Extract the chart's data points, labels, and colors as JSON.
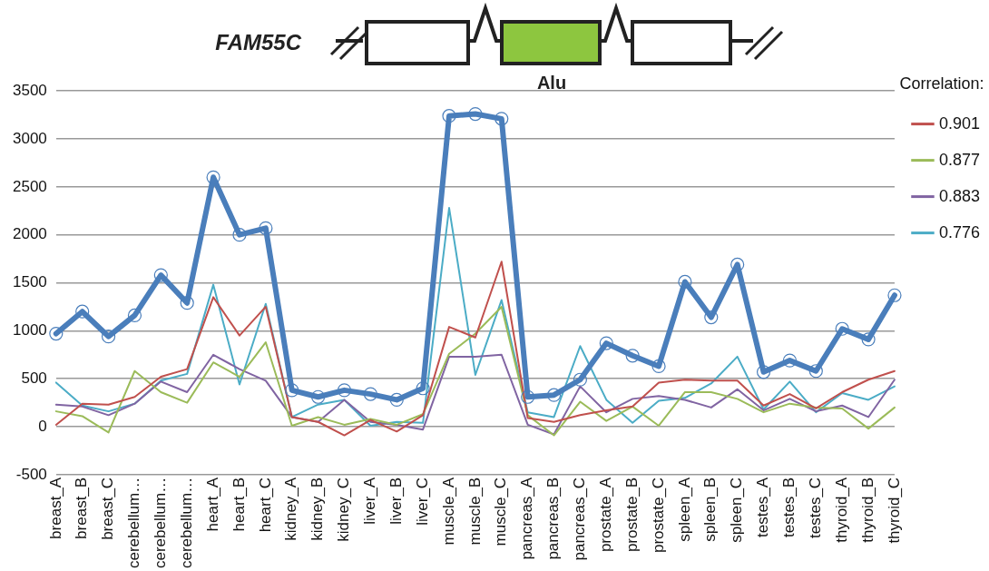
{
  "chart_data": {
    "type": "line",
    "title": "FAM55C",
    "annotations": [
      "Alu"
    ],
    "legend_title": "Correlation:",
    "legend": "top right",
    "grid": "y",
    "ylim": [
      -500,
      3500
    ],
    "yticks": [
      -500,
      0,
      500,
      1000,
      1500,
      2000,
      2500,
      3000,
      3500
    ],
    "categories": [
      "breast_A",
      "breast_B",
      "breast_C",
      "cerebellum…",
      "cerebellum…",
      "cerebellum…",
      "heart_A",
      "heart_B",
      "heart_C",
      "kidney_A",
      "kidney_B",
      "kidney_C",
      "liver_A",
      "liver_B",
      "liver_C",
      "muscle_A",
      "muscle_B",
      "muscle_C",
      "pancreas_A",
      "pancreas_B",
      "pancreas_C",
      "prostate_A",
      "prostate_B",
      "prostate_C",
      "spleen_A",
      "spleen_B",
      "spleen_C",
      "testes_A",
      "testes_B",
      "testes_C",
      "thyroid_A",
      "thyroid_B",
      "thyroid_C"
    ],
    "series": [
      {
        "color": "#4a7ebb",
        "marker": "circle",
        "values": [
          970,
          1200,
          940,
          1160,
          1580,
          1290,
          2600,
          2000,
          2070,
          380,
          310,
          380,
          340,
          280,
          400,
          3240,
          3260,
          3210,
          310,
          330,
          490,
          870,
          740,
          630,
          1510,
          1140,
          1690,
          570,
          690,
          580,
          1020,
          910,
          1370
        ]
      },
      {
        "name": "0.901",
        "color": "#c0504d",
        "marker": "none",
        "values": [
          20,
          240,
          230,
          310,
          520,
          600,
          1350,
          950,
          1250,
          100,
          50,
          -90,
          70,
          -50,
          120,
          1040,
          930,
          1720,
          90,
          50,
          120,
          170,
          210,
          460,
          490,
          480,
          480,
          220,
          340,
          190,
          360,
          490,
          580
        ]
      },
      {
        "name": "0.877",
        "color": "#9bbb59",
        "marker": "none",
        "values": [
          160,
          110,
          -60,
          580,
          360,
          250,
          670,
          520,
          880,
          10,
          100,
          20,
          80,
          20,
          130,
          760,
          970,
          1250,
          120,
          -90,
          260,
          60,
          210,
          10,
          360,
          360,
          290,
          150,
          240,
          200,
          190,
          -20,
          200
        ]
      },
      {
        "name": "0.883",
        "color": "#8064a2",
        "marker": "none",
        "values": [
          230,
          210,
          120,
          240,
          470,
          360,
          750,
          600,
          480,
          100,
          50,
          280,
          50,
          20,
          -30,
          730,
          730,
          750,
          20,
          -80,
          420,
          150,
          290,
          320,
          280,
          200,
          390,
          170,
          290,
          160,
          220,
          100,
          490
        ]
      },
      {
        "name": "0.776",
        "color": "#4bacc6",
        "marker": "none",
        "values": [
          460,
          220,
          160,
          240,
          480,
          550,
          1480,
          440,
          1280,
          100,
          230,
          280,
          10,
          50,
          40,
          2280,
          540,
          1320,
          150,
          100,
          840,
          280,
          40,
          270,
          300,
          450,
          730,
          180,
          470,
          150,
          350,
          280,
          420
        ]
      }
    ]
  }
}
